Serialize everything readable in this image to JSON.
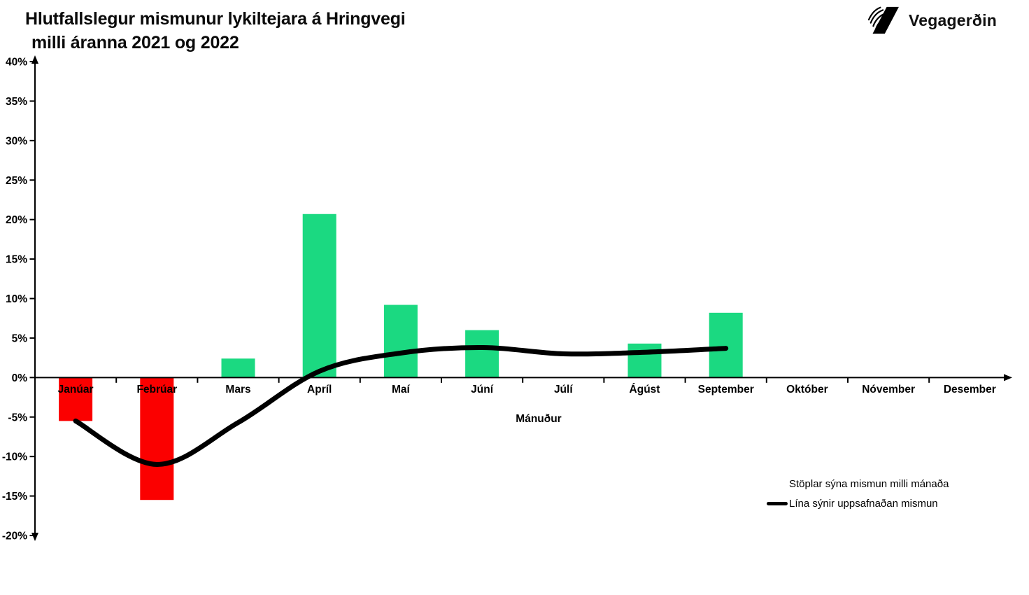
{
  "header": {
    "title_line1": "Hlutfallslegur mismunur lykiltejara á Hringvegi",
    "title_line2": "milli áranna 2021 og 2022",
    "logo_text": "Vegagerðin"
  },
  "legend": {
    "bars_label": "Stöplar sýna mismun milli mánaða",
    "line_label": "Lína sýnir uppsafnaðan mismun"
  },
  "chart_data": {
    "type": "bar",
    "combo": "bar+line",
    "title": "Hlutfallslegur mismunur lykiltejara á Hringvegi milli áranna 2021 og 2022",
    "xlabel": "Mánuður",
    "ylabel": "",
    "categories": [
      "Janúar",
      "Febrúar",
      "Mars",
      "Apríl",
      "Maí",
      "Júní",
      "Júlí",
      "Ágúst",
      "September",
      "Október",
      "Nóvember",
      "Desember"
    ],
    "series": [
      {
        "name": "Stöplar sýna mismun milli mánaða",
        "type": "bar",
        "values": [
          -5.5,
          -15.5,
          2.4,
          20.7,
          9.2,
          6.0,
          null,
          4.3,
          8.2,
          null,
          null,
          null
        ]
      },
      {
        "name": "Lína sýnir uppsafnaðan mismun",
        "type": "line",
        "values": [
          -5.5,
          -11.0,
          -5.7,
          0.8,
          3.1,
          3.8,
          3.0,
          3.2,
          3.7,
          null,
          null,
          null
        ]
      }
    ],
    "ylim": [
      -20,
      40
    ],
    "yticks": [
      40,
      35,
      30,
      25,
      20,
      15,
      10,
      5,
      0,
      -5,
      -10,
      -15,
      -20
    ],
    "ytick_format": "percent",
    "grid": false,
    "legend_position": "bottom-right",
    "colors": {
      "bar_positive": "#1BD981",
      "bar_negative": "#FB0000",
      "line": "#000000",
      "axis": "#000000"
    }
  }
}
